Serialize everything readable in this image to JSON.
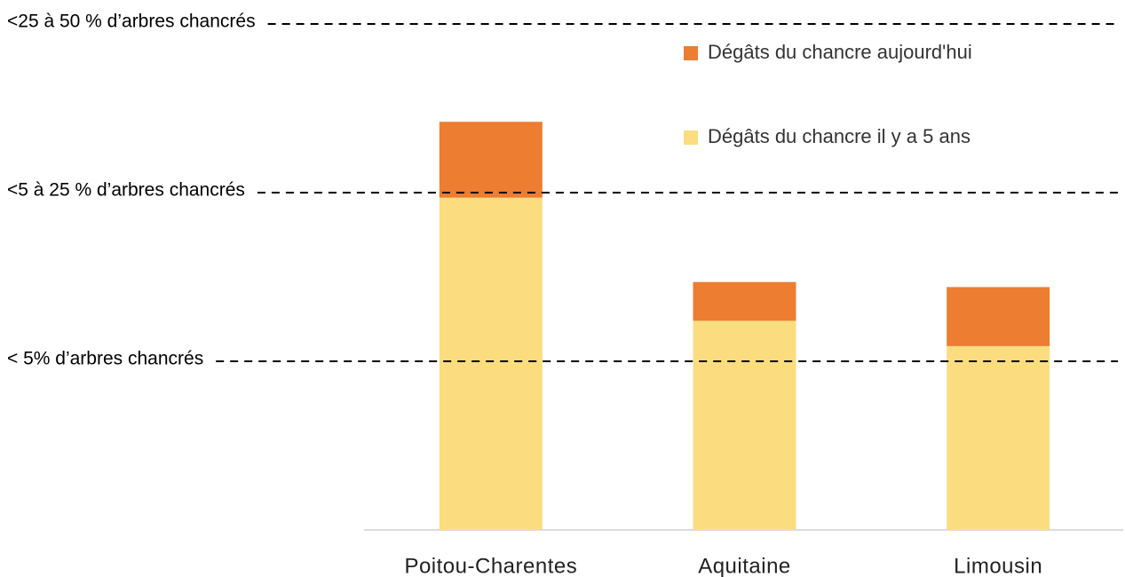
{
  "chart_data": {
    "type": "stacked_bar",
    "categories": [
      "Poitou-Charentes",
      "Aquitaine",
      "Limousin"
    ],
    "series": [
      {
        "name": "Dégâts du chancre il y a 5 ans",
        "color": "#fbdd80",
        "values": [
          1.97,
          1.24,
          1.09
        ]
      },
      {
        "name": "Dégâts du chancre aujourd'hui",
        "color": "#ed7d31",
        "values": [
          0.45,
          0.23,
          0.35
        ]
      }
    ],
    "ylim": [
      0,
      3
    ],
    "yticks": [
      {
        "value": 1,
        "label": "< 5% d’arbres chancrés"
      },
      {
        "value": 2,
        "label": "<5 à 25 % d’arbres chancrés"
      },
      {
        "value": 3,
        "label": "<25 à 50 % d’arbres chancrés"
      }
    ],
    "grid": true,
    "legend": "top-right"
  }
}
